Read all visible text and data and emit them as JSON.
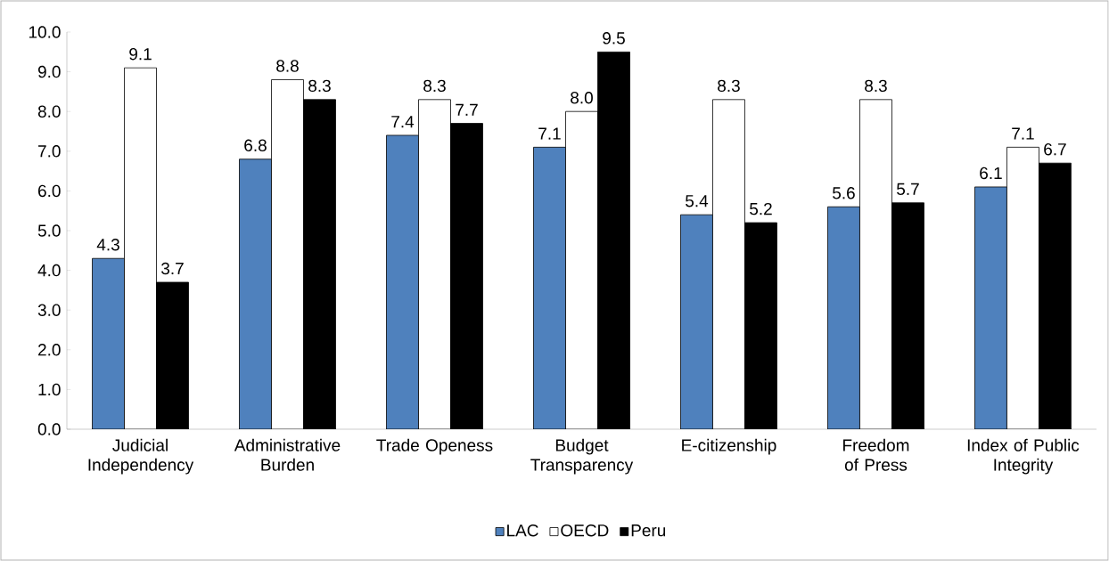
{
  "chart_data": {
    "type": "bar",
    "categories": [
      "Judicial Independency",
      "Administrative Burden",
      "Trade Openess",
      "Budget Transparency",
      "E-citizenship",
      "Freedom of Press",
      "Index of Public Integrity"
    ],
    "series": [
      {
        "name": "LAC",
        "color": "#4f81bd",
        "values": [
          4.3,
          6.8,
          7.4,
          7.1,
          5.4,
          5.6,
          6.1
        ],
        "value_labels": [
          "4.3",
          "6.8",
          "7.4",
          "7.1",
          "5.4",
          "5.6",
          "6.1"
        ]
      },
      {
        "name": "OECD",
        "color": "#ffffff",
        "values": [
          9.1,
          8.8,
          8.3,
          8.0,
          8.3,
          8.3,
          7.1
        ],
        "value_labels": [
          "9.1",
          "8.8",
          "8.3",
          "8.0",
          "8.3",
          "8.3",
          "7.1"
        ]
      },
      {
        "name": "Peru",
        "color": "#000000",
        "values": [
          3.7,
          8.3,
          7.7,
          9.5,
          5.2,
          5.7,
          6.7
        ],
        "value_labels": [
          "3.7",
          "8.3",
          "7.7",
          "9.5",
          "5.2",
          "5.7",
          "6.7"
        ]
      }
    ],
    "ylim": [
      0,
      10
    ],
    "yticks": [
      {
        "value": 0,
        "label": "0.0"
      },
      {
        "value": 1,
        "label": "1.0"
      },
      {
        "value": 2,
        "label": "2.0"
      },
      {
        "value": 3,
        "label": "3.0"
      },
      {
        "value": 4,
        "label": "4.0"
      },
      {
        "value": 5,
        "label": "5.0"
      },
      {
        "value": 6,
        "label": "6.0"
      },
      {
        "value": 7,
        "label": "7.0"
      },
      {
        "value": 8,
        "label": "8.0"
      },
      {
        "value": 9,
        "label": "9.0"
      },
      {
        "value": 10,
        "label": "10.0"
      }
    ],
    "legend": "bottom"
  }
}
